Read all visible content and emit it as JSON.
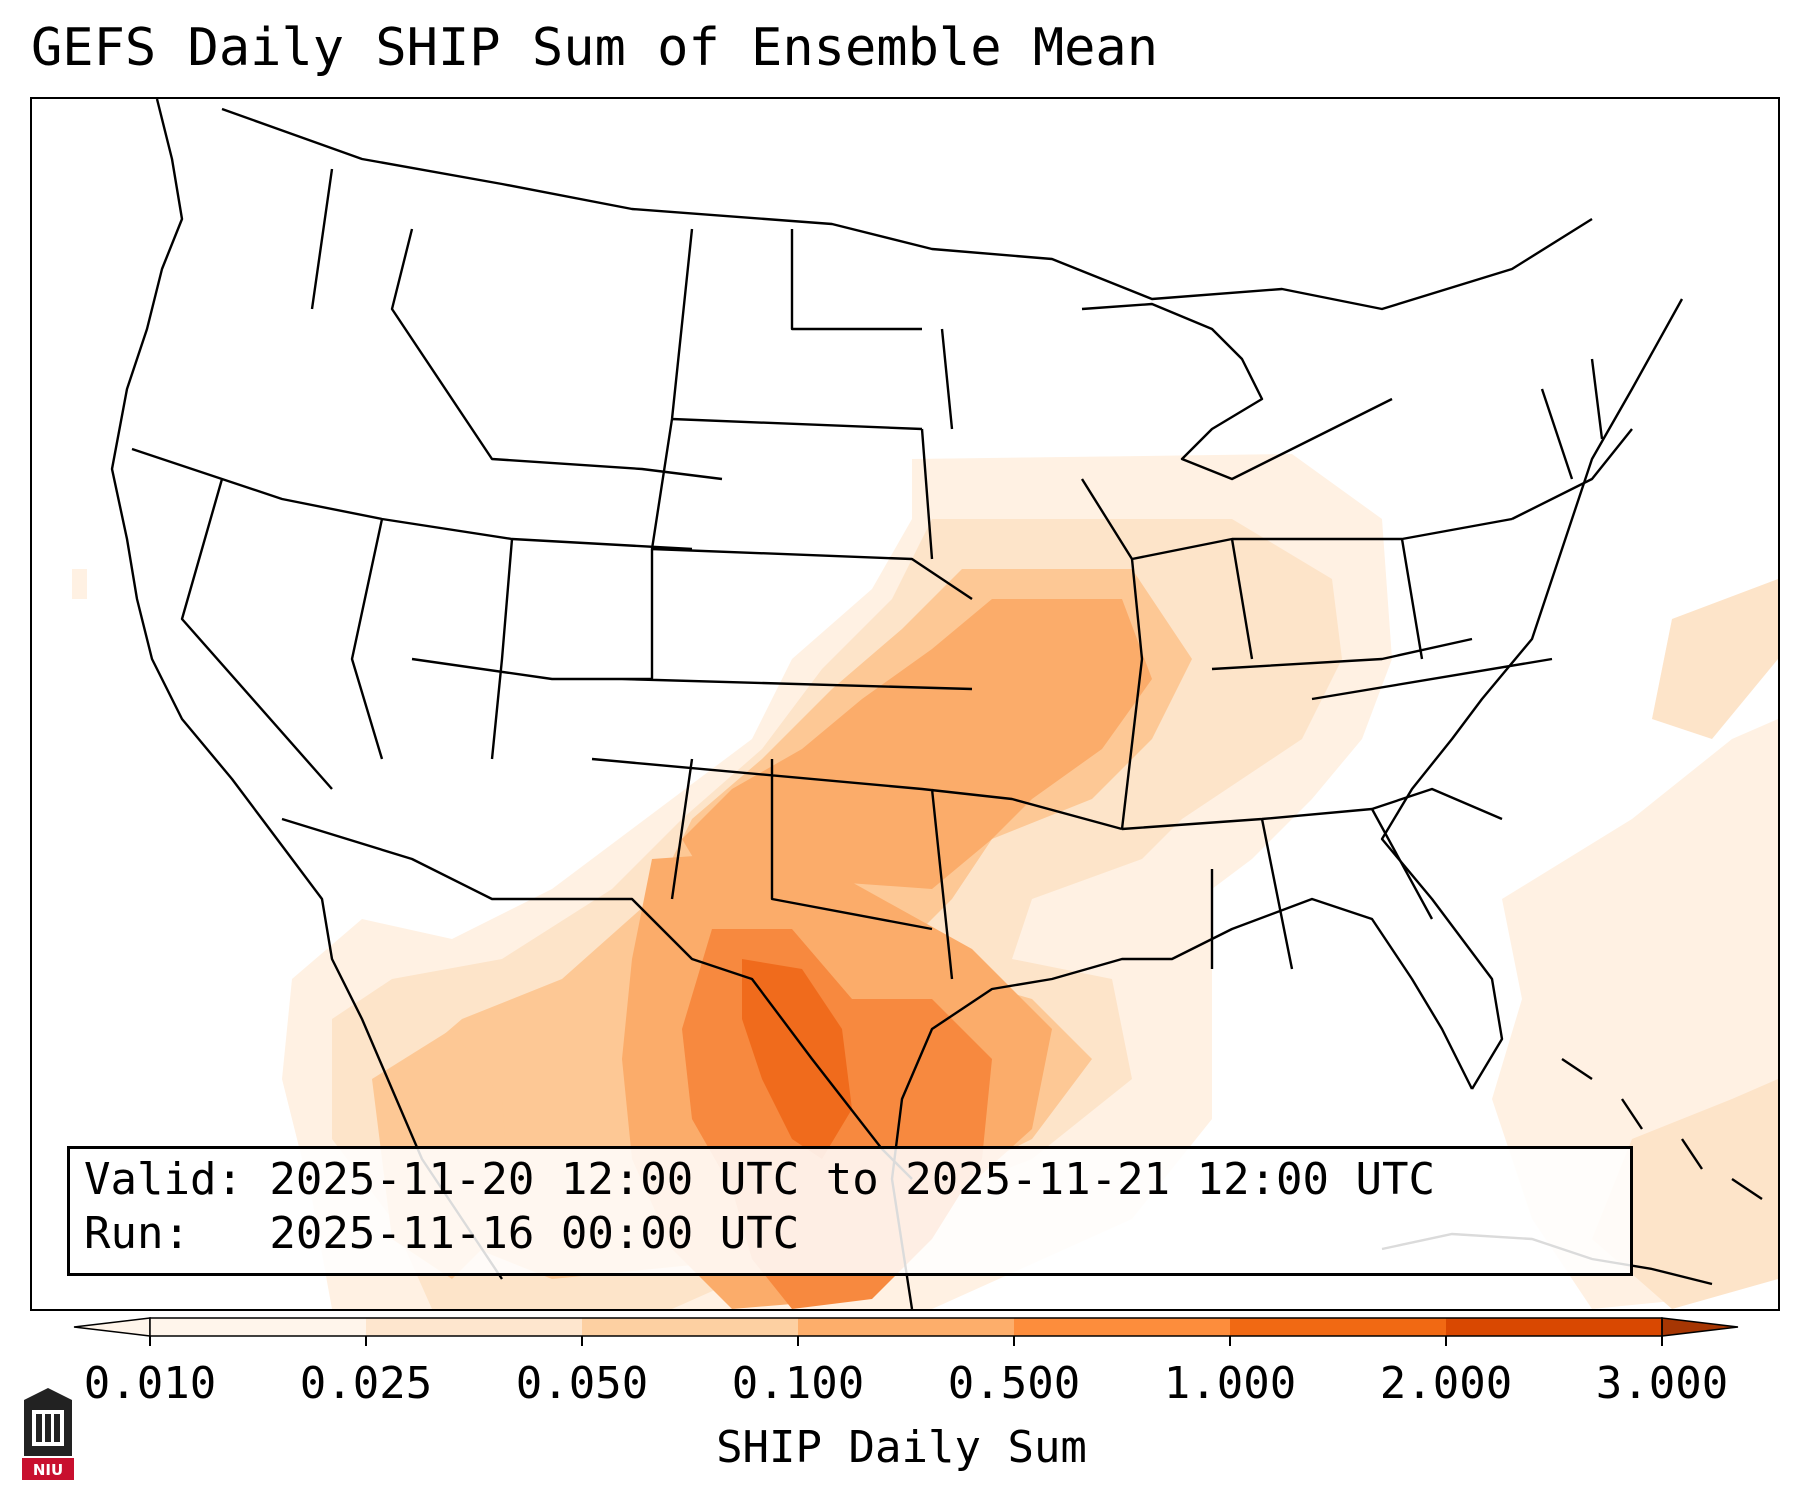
{
  "title": "GEFS Daily SHIP Sum of Ensemble Mean",
  "info": {
    "valid_line": "Valid: 2025-11-20 12:00 UTC to 2025-11-21 12:00 UTC",
    "run_line": "Run:   2025-11-16 00:00 UTC"
  },
  "colorbar": {
    "label": "SHIP Daily Sum",
    "ticks": [
      "0.010",
      "0.025",
      "0.050",
      "0.100",
      "0.500",
      "1.000",
      "2.000",
      "3.000"
    ],
    "colors": [
      "#fff5eb",
      "#fee6ce",
      "#fdd0a2",
      "#fdae6b",
      "#fd8d3c",
      "#f16913",
      "#d94801",
      "#a63603"
    ],
    "extend": "both"
  },
  "logo": {
    "text": "NIU",
    "color": "#c8102e"
  },
  "map": {
    "region": "CONUS",
    "borders": [
      "coastlines",
      "country borders",
      "state borders"
    ],
    "fill_note": "Highest values over south and central Texas into the western Gulf of Mexico"
  }
}
